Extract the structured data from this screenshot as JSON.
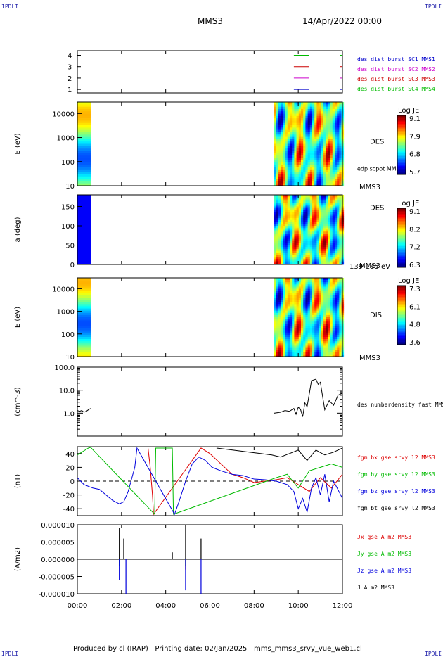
{
  "header": {
    "corner_left": "IPDLI",
    "corner_right": "IPDLI",
    "spacecraft": "MMS3",
    "date": "14/Apr/2022 00:00"
  },
  "footer": {
    "producer": "Produced by cl (IRAP)",
    "printing": "Printing date: 02/Jan/2025",
    "filename": "mms_mms3_srvy_vue_web1.cl"
  },
  "colors": {
    "mms1": "#0000cc",
    "mms2": "#cc00cc",
    "mms3": "#cc0000",
    "mms4": "#00bb00",
    "bx": "#dd0000",
    "by": "#00bb00",
    "bz": "#0000dd",
    "bt": "#000000"
  },
  "chart_data": [
    {
      "type": "line",
      "panel": "burst-availability",
      "ylim": [
        0.7,
        4.4
      ],
      "yticks": [
        "1",
        "2",
        "3",
        "4"
      ],
      "series": [
        {
          "name": "des dist burst SC1 MMS1",
          "color": "#0000cc",
          "y": 1,
          "segments": [
            [
              9.8,
              10.5
            ],
            [
              11.9,
              12.0
            ]
          ]
        },
        {
          "name": "des dist burst SC2 MMS2",
          "color": "#cc00cc",
          "y": 2,
          "segments": [
            [
              9.8,
              10.5
            ],
            [
              11.9,
              12.0
            ]
          ]
        },
        {
          "name": "des dist burst SC3 MMS3",
          "color": "#cc0000",
          "y": 3,
          "segments": [
            [
              9.8,
              10.5
            ],
            [
              11.9,
              12.0
            ]
          ]
        },
        {
          "name": "des dist burst SC4 MMS4",
          "color": "#00bb00",
          "y": 4,
          "segments": [
            [
              9.8,
              10.5
            ],
            [
              11.9,
              12.0
            ]
          ]
        }
      ]
    },
    {
      "type": "heatmap",
      "panel": "des-energy",
      "ylabel": "E (eV)",
      "yscale": "log",
      "ylim": [
        10,
        30000
      ],
      "yticks": [
        "10",
        "100",
        "1000",
        "10000"
      ],
      "label": "DES",
      "sublabel": "edp scpot MMS3",
      "spacecraft": "MMS3",
      "colorbar": {
        "title": "Log JE",
        "ticks": [
          "9.1",
          "7.9",
          "6.8",
          "5.7"
        ]
      },
      "data_intervals": [
        [
          0.0,
          0.6
        ],
        [
          8.9,
          12.0
        ]
      ]
    },
    {
      "type": "heatmap",
      "panel": "des-pitch",
      "ylabel": "a (deg)",
      "ylim": [
        0,
        180
      ],
      "yticks": [
        "0",
        "50",
        "100",
        "150"
      ],
      "label": "DES",
      "spacecraft": "MMS3",
      "energy_range": "139-185 eV",
      "colorbar": {
        "title": "Log JE",
        "ticks": [
          "9.1",
          "8.2",
          "7.2",
          "6.3"
        ]
      },
      "data_intervals": [
        [
          0.0,
          0.6
        ],
        [
          8.9,
          12.0
        ]
      ]
    },
    {
      "type": "heatmap",
      "panel": "dis-energy",
      "ylabel": "E (eV)",
      "yscale": "log",
      "ylim": [
        10,
        30000
      ],
      "yticks": [
        "10",
        "100",
        "1000",
        "10000"
      ],
      "label": "DIS",
      "spacecraft": "MMS3",
      "colorbar": {
        "title": "Log JE",
        "ticks": [
          "7.3",
          "6.1",
          "4.8",
          "3.6"
        ]
      },
      "data_intervals": [
        [
          0.0,
          0.6
        ],
        [
          8.9,
          12.0
        ]
      ]
    },
    {
      "type": "line",
      "panel": "density",
      "ylabel": "(cm^-3)",
      "yscale": "log",
      "ylim": [
        0.1,
        100
      ],
      "yticks": [
        "1.0",
        "10.0",
        "100.0"
      ],
      "series": [
        {
          "name": "des numberdensity fast MMS3",
          "color": "#000000",
          "x": [
            0.0,
            0.1,
            0.2,
            0.3,
            0.4,
            0.5,
            0.6,
            8.9,
            9.2,
            9.4,
            9.6,
            9.8,
            9.9,
            10.0,
            10.1,
            10.2,
            10.3,
            10.4,
            10.6,
            10.8,
            10.9,
            11.0,
            11.2,
            11.4,
            11.6,
            11.8,
            12.0
          ],
          "y": [
            1.3,
            1.2,
            1.3,
            1.1,
            1.2,
            1.4,
            1.6,
            1.0,
            1.1,
            1.3,
            1.2,
            1.6,
            0.9,
            1.8,
            1.5,
            0.7,
            2.8,
            1.9,
            26,
            30,
            18,
            22,
            1.4,
            3.5,
            2.2,
            6.0,
            7.5
          ]
        }
      ]
    },
    {
      "type": "line",
      "panel": "magnetic-field",
      "ylabel": "(nT)",
      "ylim": [
        -50,
        50
      ],
      "yticks": [
        "-40",
        "-20",
        "0",
        "20",
        "40"
      ],
      "series": [
        {
          "name": "fgm bx gse srvy l2 MMS3",
          "color": "#dd0000",
          "x": [
            3.2,
            3.3,
            3.4,
            3.45,
            5.6,
            6.0,
            6.5,
            7.0,
            7.5,
            8.0,
            8.5,
            9.0,
            9.5,
            10.0,
            10.5,
            11.0,
            11.5,
            12.0
          ],
          "y": [
            48,
            20,
            -20,
            -48,
            48,
            40,
            25,
            10,
            5,
            -2,
            0,
            2,
            5,
            -5,
            -15,
            5,
            -10,
            10
          ]
        },
        {
          "name": "fgm by gse srvy l2 MMS3",
          "color": "#00bb00",
          "x": [
            0.0,
            0.1,
            0.2,
            0.3,
            0.4,
            0.5,
            0.6,
            3.5,
            3.55,
            4.3,
            4.35,
            9.0,
            9.5,
            10.0,
            10.5,
            11.0,
            11.5,
            12.0
          ],
          "y": [
            38,
            40,
            42,
            44,
            46,
            48,
            49,
            -48,
            48,
            48,
            -48,
            5,
            10,
            -10,
            15,
            20,
            25,
            20
          ]
        },
        {
          "name": "fgm bz gse srvy l2 MMS3",
          "color": "#0000dd",
          "x": [
            0.0,
            0.3,
            0.7,
            1.0,
            1.3,
            1.6,
            1.9,
            2.1,
            2.3,
            2.6,
            2.7,
            4.4,
            4.6,
            4.9,
            5.2,
            5.5,
            5.8,
            6.1,
            6.5,
            7.0,
            7.5,
            8.0,
            8.5,
            9.0,
            9.5,
            9.8,
            10.0,
            10.2,
            10.4,
            10.6,
            10.8,
            11.0,
            11.2,
            11.4,
            11.6,
            12.0
          ],
          "y": [
            5,
            -5,
            -10,
            -12,
            -20,
            -28,
            -33,
            -30,
            -15,
            20,
            48,
            -48,
            -30,
            0,
            25,
            35,
            30,
            20,
            15,
            10,
            8,
            3,
            2,
            0,
            -5,
            -15,
            -40,
            -25,
            -45,
            -10,
            5,
            -20,
            10,
            -30,
            0,
            -25
          ]
        },
        {
          "name": "fgm bt gse srvy l2 MMS3",
          "color": "#000000",
          "x": [
            6.3,
            6.8,
            7.3,
            7.8,
            8.3,
            8.8,
            9.2,
            9.6,
            10.0,
            10.4,
            10.8,
            11.2,
            11.6,
            12.0
          ],
          "y": [
            48,
            46,
            44,
            42,
            40,
            38,
            35,
            40,
            45,
            30,
            45,
            38,
            42,
            48
          ]
        }
      ]
    },
    {
      "type": "line",
      "panel": "current-density",
      "ylabel": "(A/m2)",
      "ylim": [
        -0.0001,
        0.0001
      ],
      "yticks": [
        "-0.000010",
        "-0.000005",
        "0.000000",
        "0.000005",
        "0.000010"
      ],
      "series": [
        {
          "name": "Jx gse A m2 MMS3",
          "color": "#dd0000",
          "spikes": [
            [
              1.9,
              -1e-06
            ],
            [
              4.9,
              -3e-06
            ]
          ]
        },
        {
          "name": "Jy gse A m2 MMS3",
          "color": "#00bb00",
          "spikes": [
            [
              1.9,
              -2e-06
            ],
            [
              4.9,
              -2e-06
            ]
          ]
        },
        {
          "name": "Jz gse A m2 MMS3",
          "color": "#0000dd",
          "spikes": [
            [
              1.9,
              -6e-06
            ],
            [
              2.2,
              -1e-05
            ],
            [
              4.9,
              -9e-06
            ],
            [
              5.6,
              -1e-05
            ]
          ]
        },
        {
          "name": "J A m2 MMS3",
          "color": "#000000",
          "spikes": [
            [
              1.9,
              9e-06
            ],
            [
              2.1,
              6e-06
            ],
            [
              4.3,
              2e-06
            ],
            [
              4.9,
              1e-05
            ],
            [
              5.6,
              6e-06
            ]
          ]
        }
      ]
    }
  ],
  "x_axis": {
    "ticks": [
      "00:00",
      "02:00",
      "04:00",
      "06:00",
      "08:00",
      "10:00",
      "12:00"
    ],
    "range_hours": [
      0,
      12
    ]
  }
}
